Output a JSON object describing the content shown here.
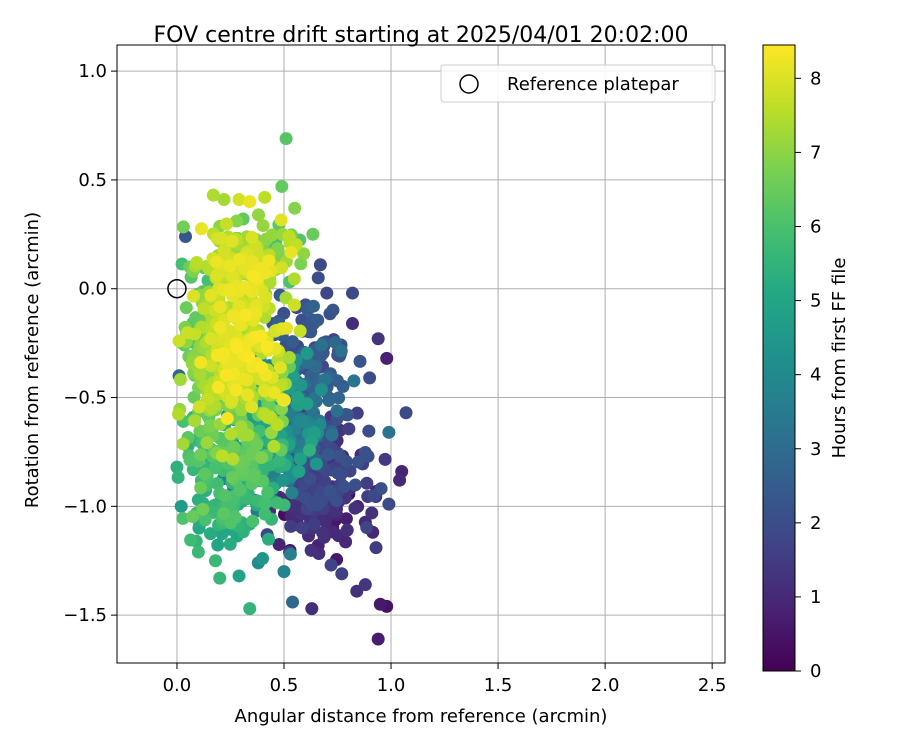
{
  "chart_data": {
    "type": "scatter",
    "title": "FOV centre drift starting at 2025/04/01 20:02:00",
    "xlabel": "Angular distance from reference (arcmin)",
    "ylabel": "Rotation from reference (arcmin)",
    "xlim": [
      -0.28,
      2.56
    ],
    "ylim": [
      -1.72,
      1.12
    ],
    "xticks": [
      0.0,
      0.5,
      1.0,
      1.5,
      2.0,
      2.5
    ],
    "xtick_labels": [
      "0.0",
      "0.5",
      "1.0",
      "1.5",
      "2.0",
      "2.5"
    ],
    "yticks": [
      1.0,
      0.5,
      0.0,
      -0.5,
      -1.0,
      -1.5
    ],
    "ytick_labels": [
      "1.0",
      "0.5",
      "0.0",
      "−0.5",
      "−1.0",
      "−1.5"
    ],
    "grid": true,
    "legend": {
      "position": "upper-right",
      "entries": [
        {
          "label": "Reference platepar",
          "marker": "open-circle"
        }
      ]
    },
    "reference_point": {
      "x": 0.0,
      "y": 0.0
    },
    "colorbar": {
      "label": "Hours from first FF file",
      "colormap": "viridis",
      "range": [
        0,
        8.45
      ],
      "ticks": [
        0,
        1,
        2,
        3,
        4,
        5,
        6,
        7,
        8
      ],
      "tick_labels": [
        "0",
        "1",
        "2",
        "3",
        "4",
        "5",
        "6",
        "7",
        "8"
      ]
    },
    "points": [
      [
        0.51,
        0.69,
        6.2
      ],
      [
        0.49,
        0.47,
        6.4
      ],
      [
        0.55,
        0.37,
        6.9
      ],
      [
        0.17,
        0.43,
        7.4
      ],
      [
        0.34,
        0.4,
        8.2
      ],
      [
        0.22,
        0.41,
        7.3
      ],
      [
        0.29,
        0.41,
        7.9
      ],
      [
        0.41,
        0.42,
        7.6
      ],
      [
        0.04,
        0.24,
        2.3
      ],
      [
        0.67,
        0.11,
        1.9
      ],
      [
        0.7,
        -0.02,
        1.8
      ],
      [
        0.82,
        -0.02,
        1.9
      ],
      [
        0.66,
        0.05,
        2.0
      ],
      [
        0.82,
        -0.16,
        1.1
      ],
      [
        0.94,
        -0.23,
        1.3
      ],
      [
        0.98,
        -0.32,
        0.8
      ],
      [
        0.76,
        -0.31,
        2.2
      ],
      [
        0.9,
        -0.41,
        2.0
      ],
      [
        1.07,
        -0.57,
        1.9
      ],
      [
        0.99,
        -0.66,
        3.2
      ],
      [
        1.05,
        -0.84,
        0.9
      ],
      [
        1.04,
        -0.88,
        1.0
      ],
      [
        0.99,
        -0.99,
        1.9
      ],
      [
        0.95,
        -1.45,
        0.6
      ],
      [
        0.98,
        -1.46,
        0.4
      ],
      [
        0.94,
        -1.61,
        0.7
      ],
      [
        0.63,
        -1.47,
        1.1
      ],
      [
        0.54,
        -1.44,
        2.8
      ],
      [
        0.34,
        -1.47,
        5.5
      ],
      [
        0.2,
        -1.33,
        5.6
      ],
      [
        0.29,
        -1.32,
        4.9
      ],
      [
        0.18,
        -1.25,
        5.7
      ],
      [
        0.72,
        -1.27,
        1.7
      ],
      [
        0.77,
        -1.31,
        1.6
      ],
      [
        0.84,
        -1.39,
        1.2
      ],
      [
        0.88,
        -1.36,
        1.4
      ],
      [
        0.02,
        -1.0,
        4.6
      ],
      [
        0.09,
        -1.16,
        5.5
      ],
      [
        0.1,
        -1.21,
        5.7
      ],
      [
        0.5,
        -1.3,
        3.8
      ],
      [
        0.53,
        -1.22,
        3.6
      ],
      [
        0.38,
        -1.26,
        4.1
      ],
      [
        0.4,
        -1.24,
        4.5
      ],
      [
        0.93,
        -1.19,
        1.5
      ],
      [
        0.03,
        -0.61,
        6.0
      ],
      [
        0.01,
        -0.24,
        7.8
      ],
      [
        0.01,
        -0.4,
        2.8
      ],
      [
        0.0,
        -0.82,
        5.4
      ],
      [
        0.1,
        -0.97,
        5.3
      ],
      [
        0.16,
        -0.04,
        7.6
      ],
      [
        0.21,
        0.14,
        7.9
      ],
      [
        0.06,
        0.1,
        6.6
      ]
    ],
    "clouds": [
      {
        "cx": 0.3,
        "cy": -0.25,
        "sx": 0.13,
        "sy": 0.22,
        "n": 190,
        "h0": 7.3,
        "h1": 8.4
      },
      {
        "cx": 0.32,
        "cy": 0.12,
        "sx": 0.13,
        "sy": 0.11,
        "n": 120,
        "h0": 6.8,
        "h1": 8.3
      },
      {
        "cx": 0.28,
        "cy": -0.48,
        "sx": 0.15,
        "sy": 0.18,
        "n": 150,
        "h0": 6.4,
        "h1": 7.6
      },
      {
        "cx": 0.28,
        "cy": -0.8,
        "sx": 0.15,
        "sy": 0.14,
        "n": 150,
        "h0": 5.2,
        "h1": 6.6
      },
      {
        "cx": 0.23,
        "cy": -1.05,
        "sx": 0.12,
        "sy": 0.08,
        "n": 50,
        "h0": 5.0,
        "h1": 6.2
      },
      {
        "cx": 0.45,
        "cy": -0.62,
        "sx": 0.12,
        "sy": 0.22,
        "n": 160,
        "h0": 3.4,
        "h1": 5.0
      },
      {
        "cx": 0.58,
        "cy": -0.52,
        "sx": 0.14,
        "sy": 0.2,
        "n": 140,
        "h0": 2.0,
        "h1": 3.3
      },
      {
        "cx": 0.64,
        "cy": -0.82,
        "sx": 0.15,
        "sy": 0.17,
        "n": 160,
        "h0": 1.0,
        "h1": 2.2
      },
      {
        "cx": 0.67,
        "cy": -1.05,
        "sx": 0.13,
        "sy": 0.09,
        "n": 70,
        "h0": 0.3,
        "h1": 1.3
      },
      {
        "cx": 0.6,
        "cy": -0.25,
        "sx": 0.09,
        "sy": 0.14,
        "n": 45,
        "h0": 1.5,
        "h1": 2.6
      },
      {
        "cx": 0.12,
        "cy": -0.15,
        "sx": 0.06,
        "sy": 0.18,
        "n": 60,
        "h0": 5.9,
        "h1": 7.2
      },
      {
        "cx": 0.45,
        "cy": 0.2,
        "sx": 0.1,
        "sy": 0.1,
        "n": 40,
        "h0": 6.0,
        "h1": 7.3
      }
    ]
  }
}
